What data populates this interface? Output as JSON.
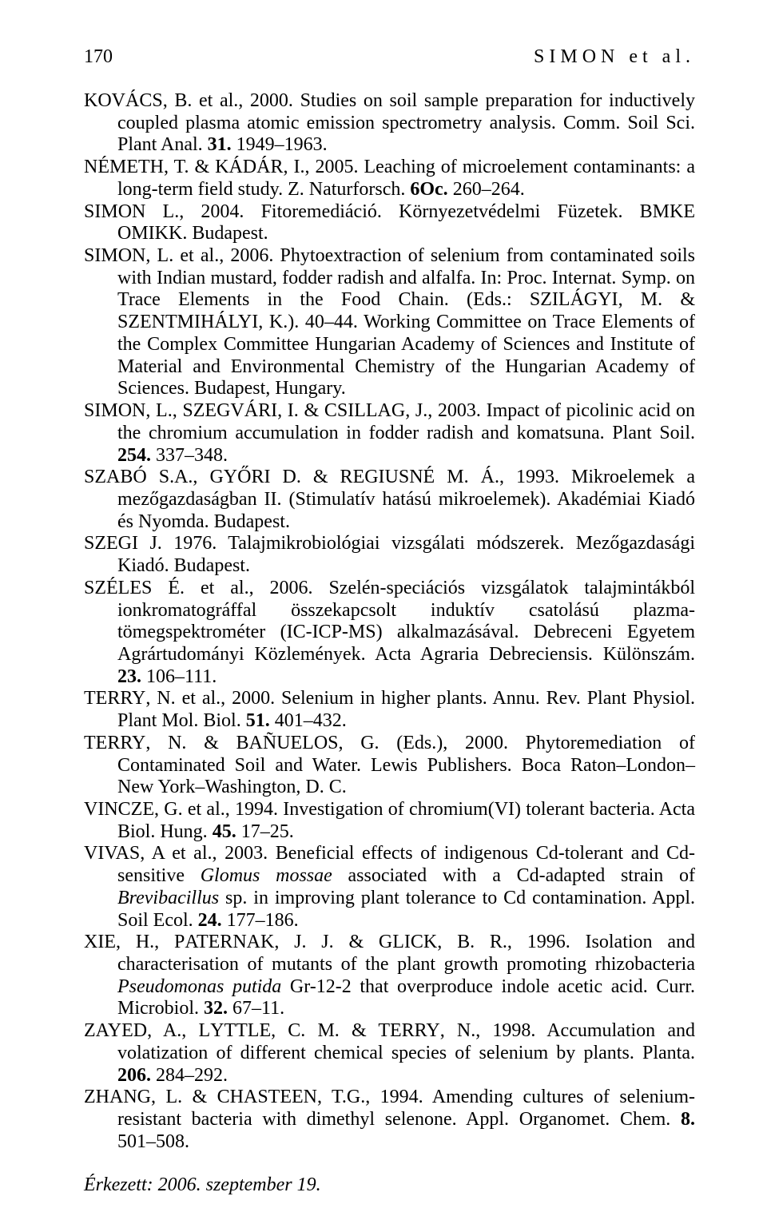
{
  "page": {
    "number": "170",
    "running_title": "SIMON et al."
  },
  "references": [
    {
      "html": "K<span class='sc'>OVÁCS</span>, B. et al., 2000. Studies on soil sample preparation for inductively coupled plasma atomic emission spectrometry analysis. Comm. Soil Sci. Plant Anal. <b>31.</b> 1949–1963."
    },
    {
      "html": "N<span class='sc'>ÉMETH</span>, T. & K<span class='sc'>ÁDÁR</span>, I., 2005. Leaching of microelement contaminants: a long-term field study. Z. Naturforsch. <b>6Oc.</b> 260–264."
    },
    {
      "html": "S<span class='sc'>IMON</span> L., 2004. Fitoremediáció. Környezetvédelmi Füzetek. BMKE OMIKK. Budapest."
    },
    {
      "html": "S<span class='sc'>IMON</span>, L. et al., 2006. Phytoextraction of selenium from contaminated soils with Indian mustard, fodder radish and alfalfa. In: Proc. Internat. Symp. on Trace Elements in the Food Chain. (Eds.: S<span class='sc'>ZILÁGYI</span>, M. & S<span class='sc'>ZENTMIHÁLYI</span>, K.). 40–44. Working Committee on Trace Elements of the Complex Committee Hungarian Academy of Sciences and Institute of Material and Environmental Chemistry of the Hungarian Academy of Sciences. Budapest, Hungary."
    },
    {
      "html": "S<span class='sc'>IMON</span>, L., S<span class='sc'>ZEGVÁRI</span>, I. & C<span class='sc'>SILLAG</span>, J., 2003. Impact of picolinic acid on the chromium accumulation in fodder radish and komatsuna. Plant Soil. <b>254.</b> 337–348."
    },
    {
      "html": "S<span class='sc'>ZABÓ</span> S.A., G<span class='sc'>YŐRI</span> D. & R<span class='sc'>EGIUSNÉ</span> M. Á., 1993. Mikroelemek a mezőgazdaságban II. (Stimulatív hatású mikroelemek). Akadémiai Kiadó és Nyomda. Budapest."
    },
    {
      "html": "S<span class='sc'>ZEGI</span> J. 1976. Talajmikrobiológiai vizsgálati módszerek. Mezőgazdasági Kiadó. Budapest."
    },
    {
      "html": "S<span class='sc'>ZÉLES</span> É. et al., 2006. Szelén-speciációs vizsgálatok talajmintákból ionkromatográffal összekapcsolt induktív csatolású plazma-tömegspektrométer (IC-ICP-MS) alkalmazásával. Debreceni Egyetem Agrártudományi Közlemények. Acta Agraria Debreciensis. Különszám. <b>23.</b> 106–111."
    },
    {
      "html": "T<span class='sc'>ERRY</span>, N. et al., 2000. Selenium in higher plants. Annu. Rev. Plant Physiol. Plant Mol. Biol. <b>51.</b> 401–432."
    },
    {
      "html": "T<span class='sc'>ERRY</span>, N. & B<span class='sc'>AÑUELOS</span>, G. (Eds.), 2000. Phytoremediation of Contaminated Soil and Water. Lewis Publishers. Boca Raton–London–New York–Washington, D. C."
    },
    {
      "html": "V<span class='sc'>INCZE</span>, G. et al., 1994. Investigation of chromium(VI) tolerant bacteria. Acta Biol. Hung. <b>45.</b> 17–25."
    },
    {
      "html": "V<span class='sc'>IVAS</span>, A et al., 2003. Beneficial effects of indigenous Cd-tolerant and Cd-sensitive <i>Glomus mossae</i> associated with a Cd-adapted strain of <i>Brevibacillus</i> sp. in improving plant tolerance to Cd contamination. Appl. Soil Ecol. <b>24.</b> 177–186."
    },
    {
      "html": "X<span class='sc'>IE</span>, H., P<span class='sc'>ATERNAK</span>, J. J. & G<span class='sc'>LICK</span>, B. R., 1996. Isolation and characterisation of mutants of the plant growth promoting rhizobacteria <i>Pseudomonas putida</i> Gr-12-2 that overproduce indole acetic acid. Curr. Microbiol. <b>32.</b> 67–11."
    },
    {
      "html": "Z<span class='sc'>AYED</span>, A., L<span class='sc'>YTTLE</span>, C. M. & T<span class='sc'>ERRY</span>, N., 1998. Accumulation and volatization of different chemical species of selenium by plants. Planta. <b>206.</b> 284–292."
    },
    {
      "html": "Z<span class='sc'>HANG</span>, L. & C<span class='sc'>HASTEEN</span>, T.G., 1994. Amending cultures of selenium-resistant bacteria with dimethyl selenone. Appl. Organomet. Chem. <b>8.</b> 501–508."
    }
  ],
  "footer": {
    "received": "Érkezett: 2006. szeptember 19."
  }
}
